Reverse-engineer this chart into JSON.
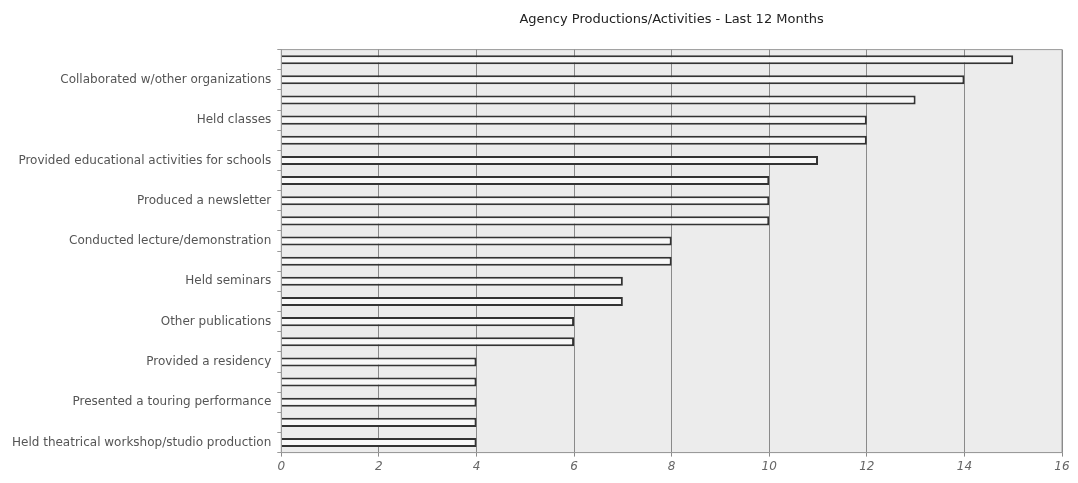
{
  "chart_data": {
    "type": "bar",
    "orientation": "horizontal",
    "title": "Agency Productions/Activities - Last 12 Months",
    "categories": [
      null,
      "Collaborated w/other organizations",
      null,
      "Held classes",
      null,
      "Provided educational activities for schools",
      null,
      "Produced a newsletter",
      null,
      "Conducted lecture/demonstration",
      null,
      "Held seminars",
      null,
      "Other publications",
      null,
      "Provided a residency",
      null,
      "Presented a touring performance",
      null,
      "Held theatrical workshop/studio production"
    ],
    "values": [
      15,
      14,
      13,
      12,
      12,
      11,
      10,
      10,
      10,
      8,
      8,
      7,
      7,
      6,
      6,
      4,
      4,
      4,
      4,
      4
    ],
    "color": "#f8f8f8",
    "xlim": [
      0,
      16
    ],
    "xticks": [
      0,
      2,
      4,
      6,
      8,
      10,
      12,
      14,
      16
    ],
    "grid": "x",
    "legend": false
  }
}
